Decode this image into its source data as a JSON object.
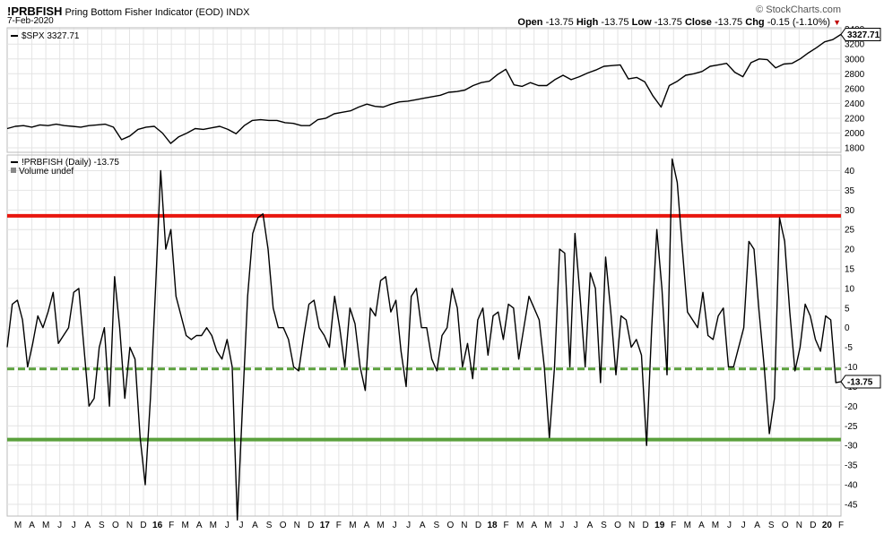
{
  "header": {
    "symbol": "!PRBFISH",
    "name": "Pring Bottom Fisher Indicator (EOD)",
    "exchange": "INDX",
    "date": "7-Feb-2020",
    "open_label": "Open",
    "open": "-13.75",
    "high_label": "High",
    "high": "-13.75",
    "low_label": "Low",
    "low": "-13.75",
    "close_label": "Close",
    "close": "-13.75",
    "chg_label": "Chg",
    "chg": "-0.15 (-1.10%)",
    "brand": "© StockCharts.com"
  },
  "chart_data": [
    {
      "type": "line",
      "panel": "price",
      "legend": "$SPX 3327.71",
      "last_value_label": "3327.71",
      "y_ticks": [
        1800,
        2000,
        2200,
        2400,
        2600,
        2800,
        3000,
        3200,
        3400
      ],
      "ylim": [
        1740,
        3420
      ],
      "series": [
        {
          "name": "$SPX",
          "values": [
            2060,
            2090,
            2100,
            2080,
            2110,
            2100,
            2120,
            2100,
            2090,
            2080,
            2100,
            2110,
            2120,
            2080,
            1910,
            1960,
            2050,
            2080,
            2090,
            2000,
            1860,
            1950,
            2000,
            2060,
            2050,
            2070,
            2090,
            2050,
            1990,
            2100,
            2170,
            2180,
            2170,
            2170,
            2140,
            2130,
            2100,
            2100,
            2180,
            2200,
            2260,
            2280,
            2300,
            2350,
            2390,
            2360,
            2350,
            2390,
            2420,
            2430,
            2450,
            2470,
            2490,
            2510,
            2550,
            2560,
            2580,
            2640,
            2680,
            2700,
            2790,
            2860,
            2650,
            2630,
            2680,
            2640,
            2640,
            2720,
            2780,
            2720,
            2760,
            2810,
            2850,
            2900,
            2910,
            2920,
            2730,
            2750,
            2690,
            2500,
            2350,
            2640,
            2700,
            2780,
            2800,
            2830,
            2900,
            2920,
            2940,
            2820,
            2760,
            2950,
            3000,
            2990,
            2880,
            2930,
            2940,
            3000,
            3080,
            3150,
            3230,
            3260,
            3330
          ]
        }
      ]
    },
    {
      "type": "line",
      "panel": "indicator",
      "legend": "!PRBFISH (Daily) -13.75",
      "sublegend": "Volume undef",
      "last_value_label": "-13.75",
      "y_ticks": [
        40,
        35,
        30,
        25,
        20,
        15,
        10,
        5,
        0,
        -5,
        -10,
        -15,
        -20,
        -25,
        -30,
        -35,
        -40,
        -45
      ],
      "ylim": [
        -48,
        44
      ],
      "reference_lines": [
        {
          "value": 28.5,
          "color": "#e8160e",
          "style": "solid"
        },
        {
          "value": -10.5,
          "color": "#5aa03c",
          "style": "dashed"
        },
        {
          "value": -28.5,
          "color": "#5aa03c",
          "style": "solid"
        }
      ],
      "series": [
        {
          "name": "!PRBFISH",
          "values": [
            -5,
            6,
            7,
            2,
            -10,
            -4,
            3,
            0,
            4,
            9,
            -4,
            -2,
            0,
            9,
            10,
            -5,
            -20,
            -18,
            -5,
            0,
            -20,
            13,
            0,
            -18,
            -5,
            -8,
            -28,
            -40,
            -18,
            10,
            40,
            20,
            25,
            8,
            3,
            -2,
            -3,
            -2,
            -2,
            0,
            -2,
            -6,
            -8,
            -3,
            -10,
            -49,
            -20,
            8,
            24,
            28,
            29,
            20,
            5,
            0,
            0,
            -3,
            -10,
            -11,
            -2,
            6,
            7,
            0,
            -2,
            -5,
            8,
            0,
            -10,
            5,
            1,
            -10,
            -16,
            5,
            3,
            12,
            13,
            4,
            7,
            -6,
            -15,
            8,
            10,
            0,
            0,
            -8,
            -11,
            -2,
            0,
            10,
            5,
            -10,
            -4,
            -13,
            2,
            5,
            -7,
            3,
            4,
            -3,
            6,
            5,
            -8,
            0,
            8,
            5,
            2,
            -10,
            -28,
            -10,
            20,
            19,
            -10,
            24,
            8,
            -10,
            14,
            10,
            -14,
            18,
            4,
            -12,
            3,
            2,
            -5,
            -3,
            -7,
            -30,
            0,
            25,
            10,
            -12,
            43,
            37,
            20,
            4,
            2,
            0,
            9,
            -2,
            -3,
            3,
            5,
            -10,
            -10,
            -5,
            0,
            22,
            20,
            4,
            -10,
            -27,
            -18,
            28,
            22,
            4,
            -11,
            -5,
            6,
            3,
            -3,
            -6,
            3,
            2,
            -14,
            -13.75
          ]
        }
      ]
    }
  ],
  "x_axis_labels": [
    "M",
    "A",
    "M",
    "J",
    "J",
    "A",
    "S",
    "O",
    "N",
    "D",
    "16",
    "F",
    "M",
    "A",
    "M",
    "J",
    "J",
    "A",
    "S",
    "O",
    "N",
    "D",
    "17",
    "F",
    "M",
    "A",
    "M",
    "J",
    "J",
    "A",
    "S",
    "O",
    "N",
    "D",
    "18",
    "F",
    "M",
    "A",
    "M",
    "J",
    "J",
    "A",
    "S",
    "O",
    "N",
    "D",
    "19",
    "F",
    "M",
    "A",
    "M",
    "J",
    "J",
    "A",
    "S",
    "O",
    "N",
    "D",
    "20",
    "F"
  ],
  "colors": {
    "price_line": "#000000",
    "indicator_line": "#000000",
    "grid": "#e4e4e4",
    "marker_box": "#ffffff"
  }
}
